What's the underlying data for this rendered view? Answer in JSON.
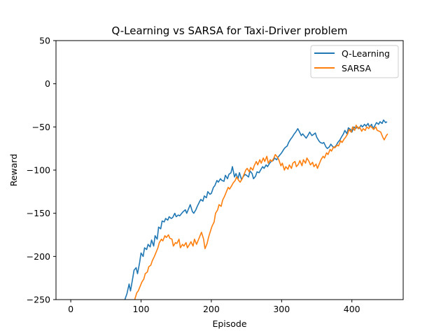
{
  "chart_data": {
    "type": "line",
    "title": "Q-Learning vs SARSA for Taxi-Driver problem",
    "xlabel": "Episode",
    "ylabel": "Reward",
    "xlim": [
      -21,
      473
    ],
    "ylim": [
      -250,
      50
    ],
    "xticks": [
      0,
      100,
      200,
      300,
      400
    ],
    "yticks": [
      -250,
      -200,
      -150,
      -100,
      -50,
      0,
      50
    ],
    "xtick_labels": [
      "0",
      "100",
      "200",
      "300",
      "400"
    ],
    "ytick_labels": [
      "−250",
      "−200",
      "−150",
      "−100",
      "−50",
      "0",
      "50"
    ],
    "grid": false,
    "legend_position": "top-right",
    "series": [
      {
        "name": "Q-Learning",
        "color": "#1f77b4",
        "x": [
          77,
          80,
          83,
          85,
          88,
          90,
          93,
          95,
          98,
          100,
          103,
          105,
          108,
          110,
          113,
          115,
          118,
          120,
          123,
          125,
          128,
          130,
          133,
          135,
          138,
          140,
          143,
          145,
          148,
          150,
          153,
          155,
          158,
          160,
          163,
          165,
          168,
          170,
          173,
          175,
          178,
          180,
          183,
          185,
          188,
          190,
          193,
          195,
          198,
          200,
          203,
          205,
          208,
          210,
          213,
          215,
          218,
          220,
          223,
          225,
          228,
          230,
          233,
          235,
          238,
          240,
          243,
          245,
          248,
          250,
          253,
          255,
          258,
          260,
          263,
          265,
          268,
          270,
          273,
          275,
          278,
          280,
          283,
          285,
          288,
          290,
          293,
          295,
          298,
          300,
          303,
          305,
          308,
          310,
          313,
          315,
          318,
          320,
          323,
          325,
          328,
          330,
          333,
          335,
          338,
          340,
          343,
          345,
          348,
          350,
          353,
          355,
          358,
          360,
          363,
          365,
          368,
          370,
          373,
          375,
          378,
          380,
          383,
          385,
          388,
          390,
          393,
          395,
          398,
          400,
          403,
          405,
          408,
          410,
          413,
          415,
          418,
          420,
          423,
          425,
          428,
          430,
          433,
          435,
          438,
          440,
          443,
          445,
          448,
          450
        ],
        "y": [
          -250,
          -243,
          -232,
          -240,
          -226,
          -216,
          -213,
          -220,
          -207,
          -196,
          -200,
          -190,
          -192,
          -186,
          -189,
          -181,
          -188,
          -176,
          -180,
          -166,
          -168,
          -159,
          -160,
          -156,
          -158,
          -154,
          -156,
          -155,
          -150,
          -154,
          -152,
          -153,
          -150,
          -148,
          -146,
          -150,
          -144,
          -140,
          -148,
          -150,
          -146,
          -142,
          -137,
          -134,
          -136,
          -130,
          -132,
          -125,
          -128,
          -127,
          -120,
          -118,
          -112,
          -114,
          -110,
          -112,
          -113,
          -106,
          -110,
          -105,
          -103,
          -96,
          -108,
          -104,
          -110,
          -103,
          -111,
          -108,
          -105,
          -106,
          -108,
          -101,
          -104,
          -110,
          -107,
          -102,
          -103,
          -100,
          -96,
          -98,
          -94,
          -96,
          -92,
          -90,
          -89,
          -86,
          -88,
          -85,
          -82,
          -80,
          -76,
          -74,
          -72,
          -68,
          -64,
          -62,
          -58,
          -56,
          -52,
          -55,
          -60,
          -58,
          -61,
          -63,
          -59,
          -56,
          -60,
          -59,
          -57,
          -62,
          -66,
          -68,
          -69,
          -68,
          -73,
          -75,
          -73,
          -70,
          -73,
          -74,
          -71,
          -68,
          -65,
          -62,
          -58,
          -54,
          -58,
          -51,
          -53,
          -56,
          -50,
          -52,
          -50,
          -52,
          -48,
          -50,
          -47,
          -49,
          -46,
          -50,
          -47,
          -52,
          -48,
          -45,
          -47,
          -44,
          -46,
          -42,
          -45,
          -44
        ]
      },
      {
        "name": "SARSA",
        "color": "#ff7f0e",
        "x": [
          91,
          94,
          96,
          99,
          101,
          104,
          106,
          109,
          111,
          114,
          116,
          119,
          121,
          124,
          126,
          129,
          131,
          134,
          136,
          139,
          141,
          144,
          146,
          149,
          151,
          154,
          156,
          159,
          161,
          164,
          166,
          169,
          171,
          174,
          176,
          179,
          181,
          184,
          186,
          189,
          191,
          194,
          196,
          199,
          201,
          204,
          206,
          209,
          211,
          214,
          216,
          219,
          221,
          224,
          226,
          229,
          231,
          234,
          236,
          239,
          241,
          244,
          246,
          249,
          251,
          254,
          256,
          259,
          261,
          264,
          266,
          269,
          271,
          274,
          276,
          279,
          281,
          284,
          286,
          289,
          291,
          294,
          296,
          299,
          301,
          304,
          306,
          309,
          311,
          314,
          316,
          319,
          321,
          324,
          326,
          329,
          331,
          334,
          336,
          339,
          341,
          344,
          346,
          349,
          351,
          354,
          356,
          359,
          361,
          364,
          366,
          369,
          371,
          374,
          376,
          379,
          381,
          384,
          386,
          389,
          391,
          394,
          396,
          399,
          401,
          404,
          406,
          409,
          411,
          414,
          416,
          419,
          421,
          424,
          426,
          429,
          431,
          434,
          436,
          439,
          441,
          444,
          446,
          449,
          451
        ],
        "y": [
          -250,
          -242,
          -240,
          -234,
          -230,
          -226,
          -220,
          -218,
          -212,
          -210,
          -205,
          -200,
          -196,
          -190,
          -184,
          -180,
          -182,
          -176,
          -178,
          -175,
          -179,
          -180,
          -188,
          -184,
          -185,
          -180,
          -190,
          -186,
          -188,
          -184,
          -190,
          -186,
          -183,
          -188,
          -180,
          -186,
          -182,
          -176,
          -172,
          -180,
          -191,
          -185,
          -178,
          -170,
          -165,
          -160,
          -150,
          -146,
          -140,
          -142,
          -135,
          -130,
          -126,
          -120,
          -122,
          -118,
          -115,
          -112,
          -108,
          -112,
          -114,
          -110,
          -106,
          -100,
          -98,
          -102,
          -97,
          -100,
          -95,
          -90,
          -94,
          -88,
          -92,
          -86,
          -90,
          -84,
          -92,
          -88,
          -90,
          -86,
          -82,
          -85,
          -88,
          -95,
          -92,
          -100,
          -96,
          -99,
          -94,
          -98,
          -92,
          -90,
          -96,
          -93,
          -89,
          -95,
          -88,
          -92,
          -86,
          -90,
          -94,
          -91,
          -96,
          -93,
          -98,
          -92,
          -88,
          -84,
          -86,
          -80,
          -82,
          -76,
          -78,
          -73,
          -74,
          -71,
          -72,
          -66,
          -68,
          -64,
          -62,
          -58,
          -53,
          -56,
          -50,
          -54,
          -48,
          -52,
          -50,
          -55,
          -52,
          -54,
          -50,
          -52,
          -49,
          -51,
          -53,
          -50,
          -54,
          -55,
          -56,
          -62,
          -65,
          -60,
          -58
        ]
      }
    ]
  }
}
